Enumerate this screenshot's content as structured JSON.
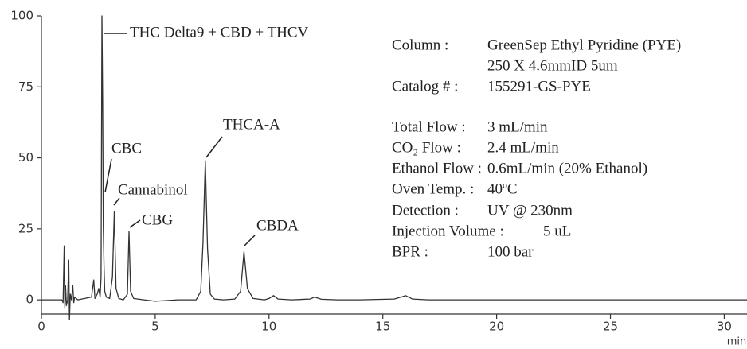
{
  "chart_data": {
    "type": "line",
    "x_label": "min",
    "xlim": [
      0,
      31
    ],
    "xticks": [
      0,
      5,
      10,
      15,
      20,
      25,
      30
    ],
    "ylim": [
      -5,
      100
    ],
    "yticks": [
      0,
      25,
      50,
      75,
      100
    ],
    "color": "#333333",
    "x": [
      0,
      0.9,
      0.95,
      1.0,
      1.03,
      1.06,
      1.1,
      1.15,
      1.2,
      1.23,
      1.27,
      1.32,
      1.38,
      1.42,
      1.46,
      1.6,
      1.9,
      2.2,
      2.3,
      2.35,
      2.45,
      2.52,
      2.58,
      2.62,
      2.66,
      2.69,
      2.72,
      2.75,
      2.78,
      2.85,
      3.0,
      3.12,
      3.2,
      3.28,
      3.4,
      3.6,
      3.78,
      3.85,
      3.92,
      4.05,
      4.5,
      5,
      6,
      6.8,
      7.0,
      7.1,
      7.2,
      7.3,
      7.42,
      7.6,
      8,
      8.5,
      8.75,
      8.9,
      9.05,
      9.3,
      9.8,
      10,
      10.2,
      10.4,
      11,
      11.8,
      12,
      12.3,
      13,
      14,
      15.5,
      15.8,
      16,
      16.3,
      17,
      18,
      20,
      22,
      24,
      26,
      28,
      30,
      31
    ],
    "y": [
      0,
      0,
      -1,
      19,
      -3,
      5,
      -2,
      0,
      14,
      -7,
      2,
      0,
      5,
      -1,
      1,
      0,
      0.5,
      1,
      7,
      0.5,
      2,
      4,
      1,
      8,
      100,
      70,
      26,
      12,
      3,
      1,
      0.5,
      8,
      31,
      4,
      0.5,
      0,
      2,
      24,
      3,
      0.5,
      0,
      -0.5,
      0,
      0,
      3,
      20,
      49,
      18,
      2,
      0.3,
      0,
      0.3,
      3,
      17,
      4,
      0.5,
      0,
      0.5,
      1.5,
      0.3,
      0,
      0.3,
      1,
      0.2,
      0,
      0,
      0.3,
      1,
      1.5,
      0.3,
      0,
      0,
      0,
      0,
      0,
      0,
      0,
      0,
      0
    ],
    "annotations": [
      "THC Delta9 + CBD + THCV",
      "CBC",
      "Cannabinol",
      "CBG",
      "THCA-A",
      "CBDA"
    ],
    "conditions": [
      {
        "label": "Column :",
        "value": [
          "GreenSep Ethyl Pyridine (PYE)",
          "250 X 4.6mmID 5um"
        ]
      },
      {
        "label": "Catalog # :",
        "value": [
          "155291-GS-PYE"
        ]
      },
      {
        "label": "Total Flow :",
        "value": [
          "3 mL/min"
        ]
      },
      {
        "label": "CO₂ Flow :",
        "value": [
          "2.4 mL/min"
        ]
      },
      {
        "label": "Ethanol Flow :",
        "value": [
          "0.6mL/min (20% Ethanol)"
        ]
      },
      {
        "label": "Oven Temp. :",
        "value": [
          "40ºC"
        ]
      },
      {
        "label": "Detection :",
        "value": [
          "UV @ 230nm"
        ]
      },
      {
        "label": "Injection Volume :",
        "value": [
          "5 uL"
        ]
      },
      {
        "label": "BPR :",
        "value": [
          "100 bar"
        ]
      }
    ]
  }
}
